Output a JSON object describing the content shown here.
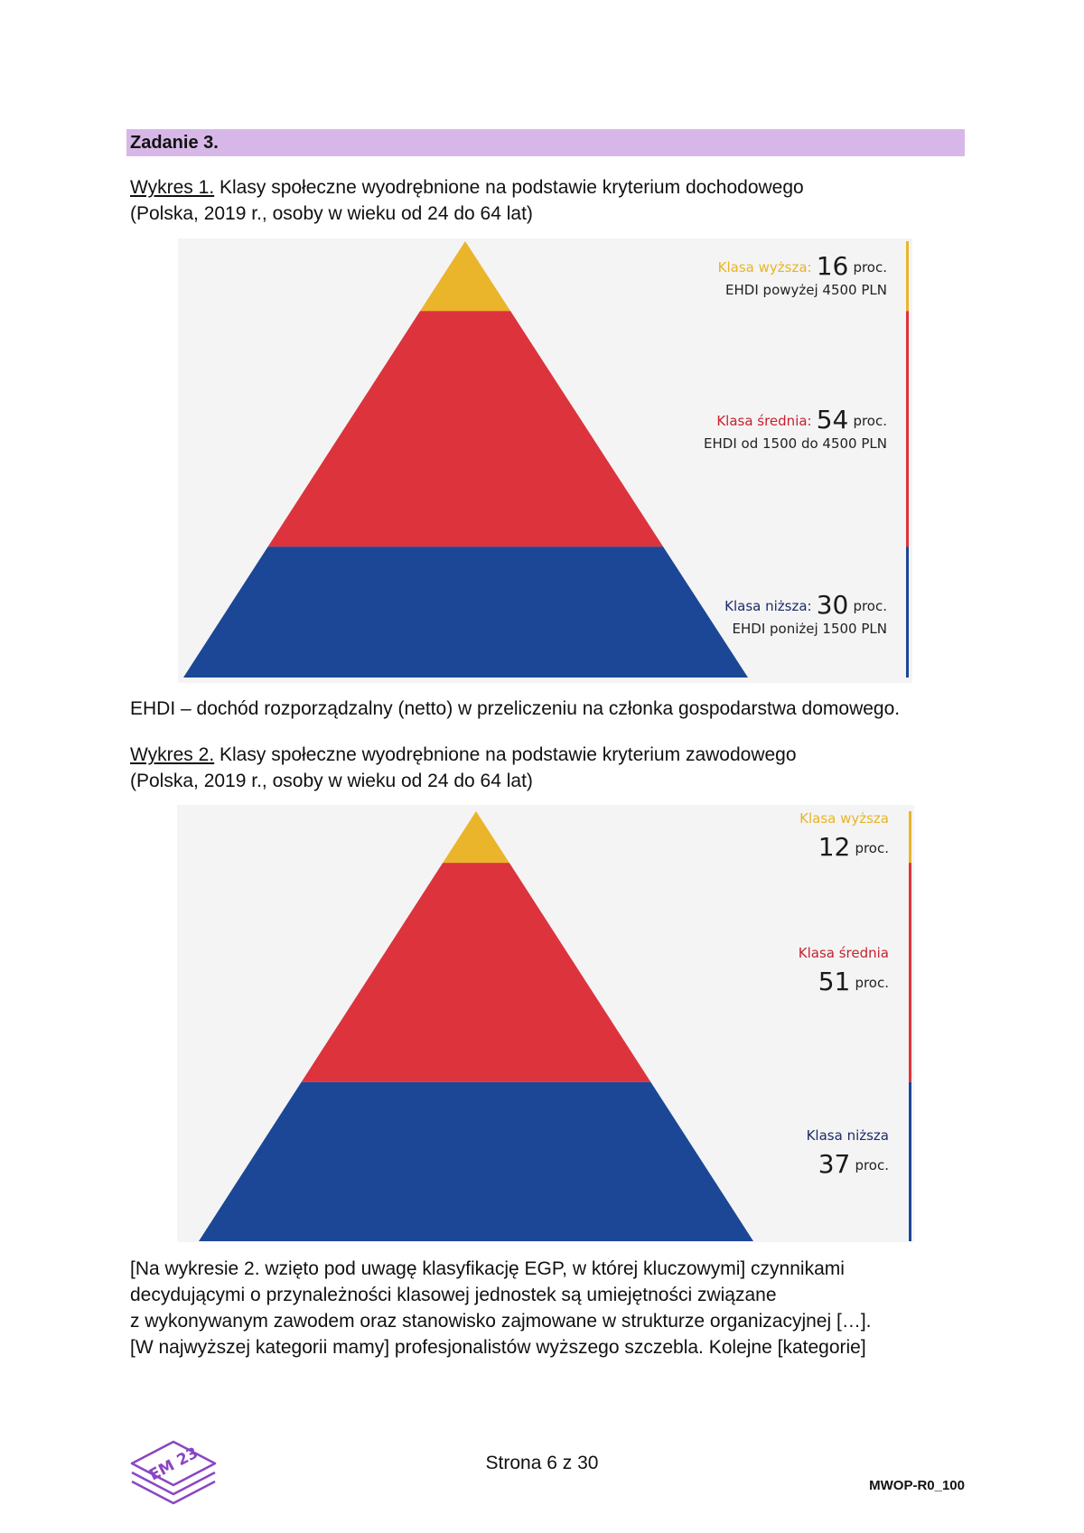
{
  "task": {
    "title": "Zadanie 3."
  },
  "chart1": {
    "ref": "Wykres 1.",
    "caption_line1": " Klasy społeczne wyodrębnione na podstawie kryterium dochodowego",
    "caption_line2": "(Polska, 2019 r., osoby w wieku od 24 do 64 lat)"
  },
  "chart2": {
    "ref": "Wykres 2.",
    "caption_line1": " Klasy społeczne wyodrębnione na podstawie kryterium zawodowego",
    "caption_line2": "(Polska, 2019 r., osoby w wieku od 24 do 64 lat)"
  },
  "chart_data": [
    {
      "type": "pyramid",
      "title": "Klasy społeczne wyodrębnione na podstawie kryterium dochodowego",
      "unit": "proc.",
      "segments": [
        {
          "label": "Klasa wyższa:",
          "value": 16,
          "detail": "EHDI powyżej 4500 PLN",
          "color": "#eab52b"
        },
        {
          "label": "Klasa średnia:",
          "value": 54,
          "detail": "EHDI od 1500 do 4500 PLN",
          "color": "#dd333d"
        },
        {
          "label": "Klasa niższa:",
          "value": 30,
          "detail": "EHDI poniżej 1500 PLN",
          "color": "#1b4796"
        }
      ]
    },
    {
      "type": "pyramid",
      "title": "Klasy społeczne wyodrębnione na podstawie kryterium zawodowego",
      "unit": "proc.",
      "segments": [
        {
          "label": "Klasa wyższa",
          "value": 12,
          "color": "#eab52b"
        },
        {
          "label": "Klasa średnia",
          "value": 51,
          "color": "#dd333d"
        },
        {
          "label": "Klasa niższa",
          "value": 37,
          "color": "#1b4796"
        }
      ]
    }
  ],
  "ehdi_note": "EHDI – dochód rozporządzalny (netto) w przeliczeniu na członka gospodarstwa domowego.",
  "body": {
    "line1": "[Na wykresie 2. wzięto pod uwagę klasyfikację EGP, w której kluczowymi] czynnikami",
    "line2": "decydującymi o przynależności klasowej jednostek są umiejętności związane",
    "line3": "z wykonywanym zawodem oraz stanowisko zajmowane w strukturze organizacyjnej […].",
    "line4": "[W najwyższej kategorii mamy] profesjonalistów wyższego szczebla. Kolejne [kategorie]"
  },
  "footer": {
    "page": "Strona 6 z 30",
    "code": "MWOP-R0_100",
    "logo_text": "EM 23"
  }
}
